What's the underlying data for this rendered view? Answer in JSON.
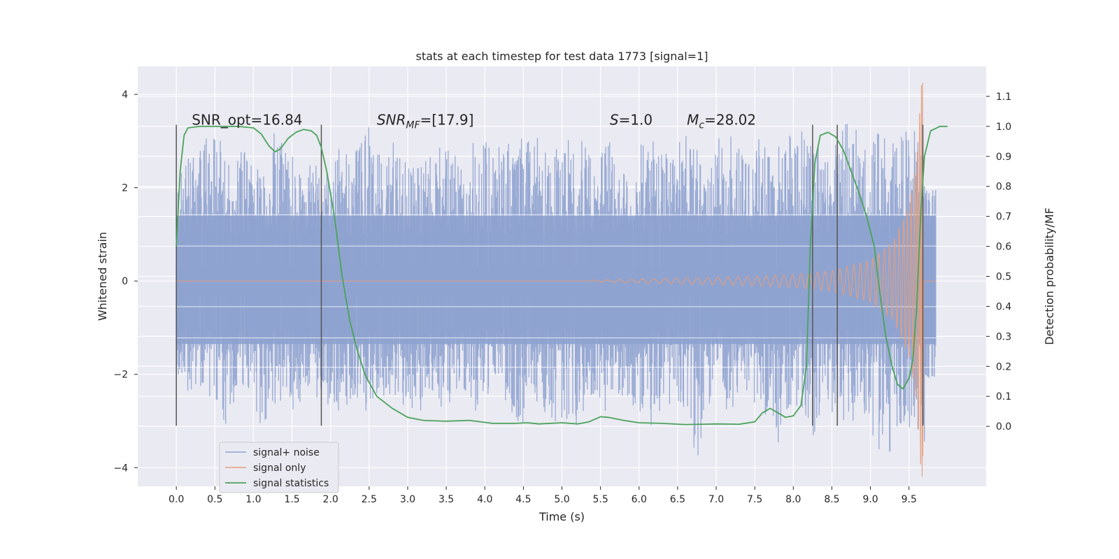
{
  "chart_data": {
    "type": "line",
    "title": "stats at each timestep for test data 1773 [signal=1]",
    "xlabel": "Time (s)",
    "ylabel": "Whitened strain",
    "ylabel_right": "Detection probability/MF",
    "xlim": [
      -0.5,
      10.5
    ],
    "ylim": [
      -4.4,
      4.6
    ],
    "ylim_right": [
      -0.2,
      1.2
    ],
    "x_ticks": [
      "0.0",
      "0.5",
      "1.0",
      "1.5",
      "2.0",
      "2.5",
      "3.0",
      "3.5",
      "4.0",
      "4.5",
      "5.0",
      "5.5",
      "6.0",
      "6.5",
      "7.0",
      "7.5",
      "8.0",
      "8.5",
      "9.0",
      "9.5"
    ],
    "y_ticks": [
      "−4",
      "−2",
      "0",
      "2",
      "4"
    ],
    "y_ticks_right": [
      "0.0",
      "0.1",
      "0.2",
      "0.3",
      "0.4",
      "0.5",
      "0.6",
      "0.7",
      "0.8",
      "0.9",
      "1.0",
      "1.1"
    ],
    "grid": true,
    "legend_position": "lower-left",
    "colors": {
      "noise": "#8ea2cf",
      "signal": "#e49e7c",
      "stats": "#4aa35a",
      "vline": "#555555",
      "background": "#eaeaf2",
      "grid": "#ffffff"
    },
    "annotations": [
      {
        "text": "SNR_opt=16.84",
        "x": 0.2,
        "y": 3.35
      },
      {
        "pre": "SNR",
        "sub": "MF",
        "post": "=[17.9]",
        "italic": true,
        "x": 2.6,
        "y": 3.35
      },
      {
        "pre": "S",
        "sub": "",
        "post": "=1.0",
        "italic": true,
        "x": 5.62,
        "y": 3.35
      },
      {
        "pre": "M",
        "sub": "c",
        "post": "=28.02",
        "italic": true,
        "x": 6.62,
        "y": 3.35
      }
    ],
    "vlines": {
      "x": [
        0.0,
        1.88,
        8.25,
        8.57,
        9.68
      ],
      "ymin": -3.1,
      "ymax": 3.35
    },
    "series": [
      {
        "name": "signal+ noise",
        "axis": "left",
        "t_start": 0.0,
        "t_end": 9.7,
        "upper_envelope": [
          [
            0.0,
            3.1
          ],
          [
            0.1,
            2.6
          ],
          [
            0.3,
            2.9
          ],
          [
            0.5,
            3.3
          ],
          [
            0.7,
            2.5
          ],
          [
            0.9,
            2.9
          ],
          [
            1.1,
            2.6
          ],
          [
            1.3,
            3.3
          ],
          [
            1.5,
            2.7
          ],
          [
            1.7,
            2.6
          ],
          [
            1.9,
            2.4
          ],
          [
            2.1,
            3.2
          ],
          [
            2.3,
            2.6
          ],
          [
            2.45,
            3.8
          ],
          [
            2.6,
            2.7
          ],
          [
            2.8,
            3.2
          ],
          [
            3.0,
            2.6
          ],
          [
            3.2,
            2.9
          ],
          [
            3.4,
            3.0
          ],
          [
            3.6,
            2.7
          ],
          [
            3.8,
            2.9
          ],
          [
            4.0,
            3.3
          ],
          [
            4.2,
            2.9
          ],
          [
            4.4,
            3.1
          ],
          [
            4.6,
            3.3
          ],
          [
            4.8,
            2.9
          ],
          [
            5.0,
            3.1
          ],
          [
            5.2,
            3.2
          ],
          [
            5.4,
            2.8
          ],
          [
            5.6,
            3.3
          ],
          [
            5.8,
            2.7
          ],
          [
            6.0,
            3.1
          ],
          [
            6.2,
            3.2
          ],
          [
            6.4,
            2.9
          ],
          [
            6.6,
            3.3
          ],
          [
            6.8,
            2.9
          ],
          [
            7.0,
            3.0
          ],
          [
            7.2,
            3.3
          ],
          [
            7.4,
            2.9
          ],
          [
            7.6,
            3.1
          ],
          [
            7.8,
            3.0
          ],
          [
            8.0,
            3.2
          ],
          [
            8.2,
            3.3
          ],
          [
            8.4,
            2.9
          ],
          [
            8.6,
            3.1
          ],
          [
            8.7,
            3.7
          ],
          [
            8.9,
            2.9
          ],
          [
            9.1,
            3.2
          ],
          [
            9.3,
            3.1
          ],
          [
            9.5,
            3.9
          ],
          [
            9.6,
            3.7
          ],
          [
            9.7,
            2.6
          ]
        ],
        "lower_envelope": [
          [
            0.0,
            -2.0
          ],
          [
            0.2,
            -2.6
          ],
          [
            0.4,
            -2.4
          ],
          [
            0.6,
            -3.3
          ],
          [
            0.8,
            -2.4
          ],
          [
            1.0,
            -2.7
          ],
          [
            1.15,
            -3.4
          ],
          [
            1.3,
            -2.6
          ],
          [
            1.5,
            -2.8
          ],
          [
            1.7,
            -2.5
          ],
          [
            1.9,
            -2.6
          ],
          [
            2.1,
            -2.9
          ],
          [
            2.3,
            -2.6
          ],
          [
            2.5,
            -2.9
          ],
          [
            2.7,
            -2.6
          ],
          [
            2.9,
            -2.7
          ],
          [
            3.1,
            -2.9
          ],
          [
            3.3,
            -2.6
          ],
          [
            3.5,
            -2.8
          ],
          [
            3.7,
            -2.6
          ],
          [
            3.9,
            -2.8
          ],
          [
            4.1,
            -2.6
          ],
          [
            4.3,
            -2.7
          ],
          [
            4.45,
            -3.35
          ],
          [
            4.6,
            -2.7
          ],
          [
            4.8,
            -2.9
          ],
          [
            5.15,
            -3.3
          ],
          [
            5.3,
            -2.7
          ],
          [
            5.5,
            -2.9
          ],
          [
            5.7,
            -2.6
          ],
          [
            5.9,
            -2.8
          ],
          [
            6.15,
            -3.2
          ],
          [
            6.3,
            -2.7
          ],
          [
            6.5,
            -2.8
          ],
          [
            6.75,
            -3.85
          ],
          [
            6.9,
            -2.7
          ],
          [
            7.1,
            -2.8
          ],
          [
            7.3,
            -2.7
          ],
          [
            7.6,
            -3.1
          ],
          [
            7.8,
            -3.5
          ],
          [
            8.0,
            -2.9
          ],
          [
            8.25,
            -3.45
          ],
          [
            8.4,
            -2.8
          ],
          [
            8.6,
            -3.0
          ],
          [
            8.9,
            -3.0
          ],
          [
            9.1,
            -3.7
          ],
          [
            9.3,
            -3.8
          ],
          [
            9.45,
            -3.2
          ],
          [
            9.6,
            -3.6
          ],
          [
            9.7,
            -3.9
          ]
        ],
        "cap_top": 2.1,
        "cap_bottom": -2.1,
        "cap_x": 9.85
      },
      {
        "name": "signal only",
        "axis": "left",
        "merger_time": 9.68,
        "start_time": 5.4,
        "peak_amplitude": 4.25,
        "final_amplitude": -3.75,
        "amplitude_samples": [
          [
            5.5,
            0.02
          ],
          [
            6.5,
            0.06
          ],
          [
            7.5,
            0.1
          ],
          [
            8.0,
            0.14
          ],
          [
            8.5,
            0.22
          ],
          [
            9.0,
            0.45
          ],
          [
            9.3,
            0.85
          ],
          [
            9.5,
            1.6
          ],
          [
            9.6,
            2.6
          ],
          [
            9.66,
            4.2
          ]
        ]
      },
      {
        "name": "signal statistics",
        "axis": "right",
        "points": [
          [
            0.0,
            0.6
          ],
          [
            0.05,
            0.85
          ],
          [
            0.1,
            0.97
          ],
          [
            0.15,
            0.995
          ],
          [
            0.3,
            1.0
          ],
          [
            0.6,
            1.0
          ],
          [
            0.8,
            1.0
          ],
          [
            1.0,
            0.995
          ],
          [
            1.1,
            0.975
          ],
          [
            1.2,
            0.935
          ],
          [
            1.28,
            0.915
          ],
          [
            1.35,
            0.925
          ],
          [
            1.45,
            0.96
          ],
          [
            1.55,
            0.98
          ],
          [
            1.65,
            0.99
          ],
          [
            1.75,
            0.985
          ],
          [
            1.82,
            0.97
          ],
          [
            1.88,
            0.93
          ],
          [
            1.95,
            0.85
          ],
          [
            2.05,
            0.7
          ],
          [
            2.15,
            0.5
          ],
          [
            2.25,
            0.35
          ],
          [
            2.35,
            0.25
          ],
          [
            2.45,
            0.17
          ],
          [
            2.6,
            0.1
          ],
          [
            2.8,
            0.06
          ],
          [
            3.0,
            0.03
          ],
          [
            3.2,
            0.02
          ],
          [
            3.5,
            0.017
          ],
          [
            3.8,
            0.02
          ],
          [
            4.1,
            0.01
          ],
          [
            4.4,
            0.01
          ],
          [
            4.55,
            0.012
          ],
          [
            4.7,
            0.008
          ],
          [
            5.0,
            0.012
          ],
          [
            5.2,
            0.008
          ],
          [
            5.35,
            0.015
          ],
          [
            5.5,
            0.032
          ],
          [
            5.6,
            0.03
          ],
          [
            5.8,
            0.02
          ],
          [
            6.0,
            0.012
          ],
          [
            6.3,
            0.01
          ],
          [
            6.6,
            0.006
          ],
          [
            7.0,
            0.008
          ],
          [
            7.3,
            0.007
          ],
          [
            7.5,
            0.015
          ],
          [
            7.6,
            0.045
          ],
          [
            7.7,
            0.06
          ],
          [
            7.8,
            0.045
          ],
          [
            7.9,
            0.03
          ],
          [
            8.0,
            0.035
          ],
          [
            8.1,
            0.07
          ],
          [
            8.17,
            0.2
          ],
          [
            8.22,
            0.6
          ],
          [
            8.28,
            0.88
          ],
          [
            8.35,
            0.97
          ],
          [
            8.45,
            0.98
          ],
          [
            8.55,
            0.965
          ],
          [
            8.65,
            0.92
          ],
          [
            8.75,
            0.85
          ],
          [
            8.85,
            0.78
          ],
          [
            8.95,
            0.7
          ],
          [
            9.05,
            0.6
          ],
          [
            9.12,
            0.45
          ],
          [
            9.2,
            0.3
          ],
          [
            9.28,
            0.2
          ],
          [
            9.35,
            0.14
          ],
          [
            9.42,
            0.125
          ],
          [
            9.5,
            0.16
          ],
          [
            9.55,
            0.22
          ],
          [
            9.6,
            0.4
          ],
          [
            9.65,
            0.7
          ],
          [
            9.7,
            0.9
          ],
          [
            9.78,
            0.985
          ],
          [
            9.9,
            1.0
          ],
          [
            10.0,
            1.0
          ]
        ]
      }
    ]
  }
}
